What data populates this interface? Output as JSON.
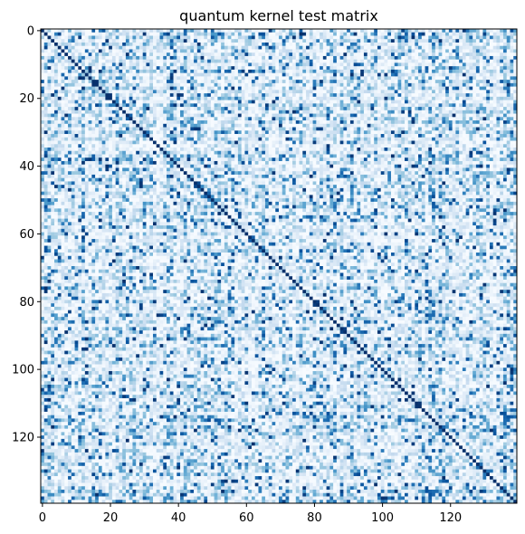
{
  "chart_data": {
    "type": "heatmap",
    "title": "quantum kernel test matrix",
    "xlabel": "",
    "ylabel": "",
    "rows": 140,
    "cols": 140,
    "x_range": [
      0,
      139
    ],
    "y_range": [
      0,
      139
    ],
    "y_inverted": true,
    "colormap": "Blues",
    "value_range": [
      0,
      1
    ],
    "diagonal_value": 1.0,
    "off_diagonal_values": "dense matrix of kernel overlaps, mostly 0.05–0.35 with scattered high values up to ~0.95 (cell-level values not individually legible)",
    "x_ticks": [
      {
        "value": 0,
        "label": "0"
      },
      {
        "value": 20,
        "label": "20"
      },
      {
        "value": 40,
        "label": "40"
      },
      {
        "value": 60,
        "label": "60"
      },
      {
        "value": 80,
        "label": "80"
      },
      {
        "value": 100,
        "label": "100"
      },
      {
        "value": 120,
        "label": "120"
      }
    ],
    "y_ticks": [
      {
        "value": 0,
        "label": "0"
      },
      {
        "value": 20,
        "label": "20"
      },
      {
        "value": 40,
        "label": "40"
      },
      {
        "value": 60,
        "label": "60"
      },
      {
        "value": 80,
        "label": "80"
      },
      {
        "value": 100,
        "label": "100"
      },
      {
        "value": 120,
        "label": "120"
      }
    ],
    "grid": false,
    "legend": "none"
  }
}
